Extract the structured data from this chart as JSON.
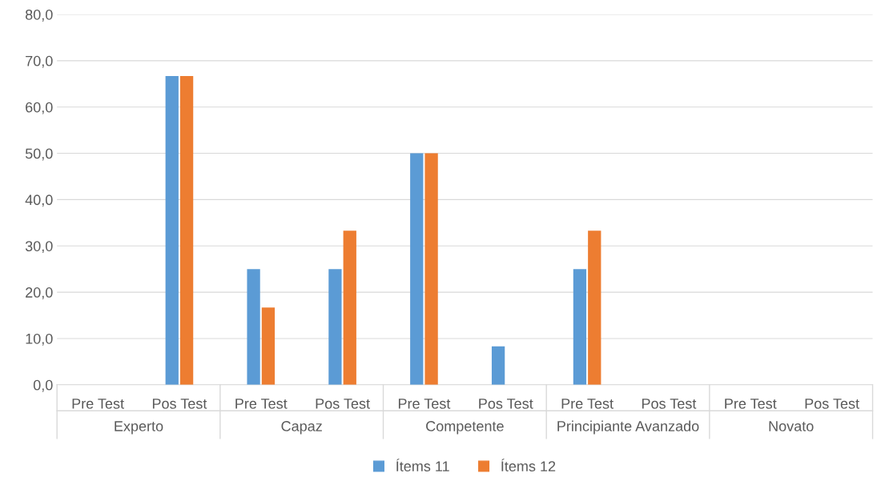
{
  "chart_data": {
    "type": "bar",
    "categories": [
      "Pre Test",
      "Pos Test",
      "Pre Test",
      "Pos Test",
      "Pre Test",
      "Pos Test",
      "Pre Test",
      "Pos Test",
      "Pre Test",
      "Pos Test"
    ],
    "annotations": [
      "Experto",
      "Capaz",
      "Competente",
      "Principiante Avanzado",
      "Novato"
    ],
    "series": [
      {
        "name": "Ítems 11",
        "color": "#5b9bd5",
        "values": [
          0,
          66.7,
          25,
          25,
          50,
          8.3,
          25,
          0,
          0,
          0
        ]
      },
      {
        "name": "Ítems 12",
        "color": "#ed7d31",
        "values": [
          0,
          66.7,
          16.7,
          33.3,
          50,
          0,
          33.3,
          0,
          0,
          0
        ]
      }
    ],
    "ylim": [
      0,
      80
    ],
    "yticks": [
      {
        "value": 0,
        "label": "0,0"
      },
      {
        "value": 10,
        "label": "10,0"
      },
      {
        "value": 20,
        "label": "20,0"
      },
      {
        "value": 30,
        "label": "30,0"
      },
      {
        "value": 40,
        "label": "40,0"
      },
      {
        "value": 50,
        "label": "50,0"
      },
      {
        "value": 60,
        "label": "60,0"
      },
      {
        "value": 70,
        "label": "70,0"
      },
      {
        "value": 80,
        "label": "80,0"
      }
    ],
    "grid": "y",
    "legend": "bottom"
  }
}
